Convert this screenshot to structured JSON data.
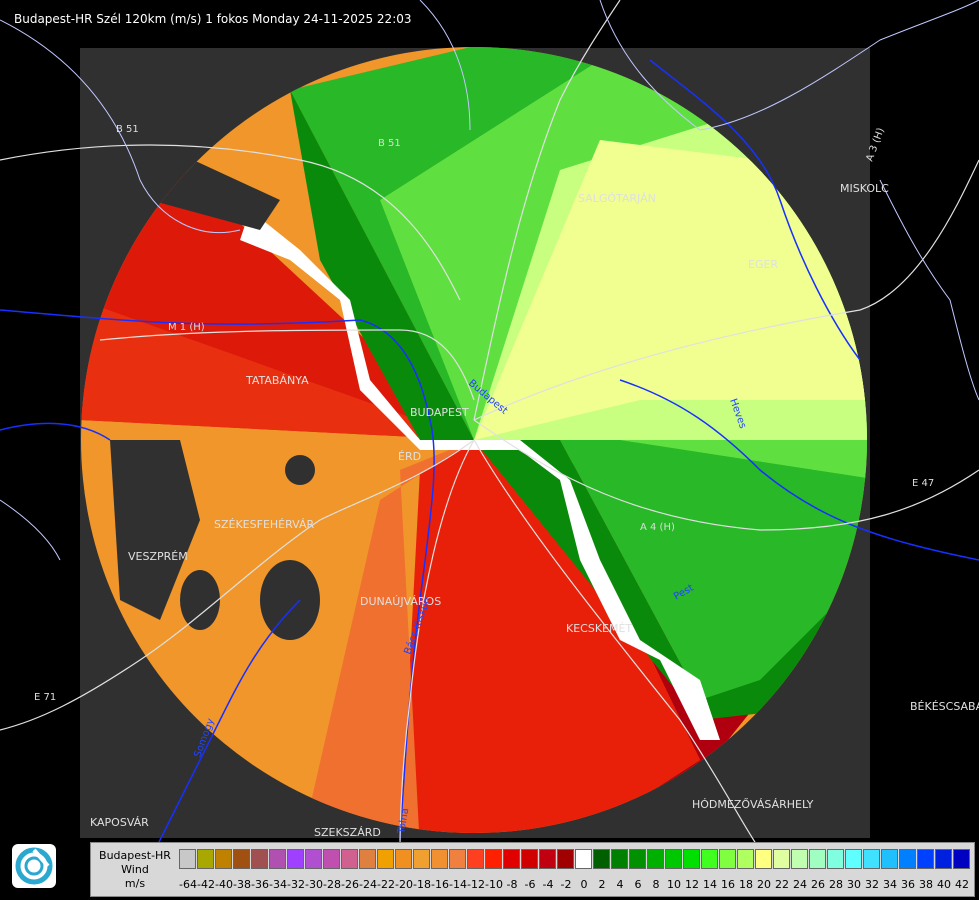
{
  "header": {
    "title": "Budapest-HR Szél 120km (m/s) 1 fokos Monday 24-11-2025 22:03"
  },
  "map": {
    "cities": [
      "SALGÓTARJÁN",
      "EGER",
      "MISKOLC",
      "TATABÁNYA",
      "BUDAPEST",
      "ÉRD",
      "SZÉKESFEHÉRVÁR",
      "VESZPRÉM",
      "DUNAÚJVÁROS",
      "KECSKEMÉT",
      "BÉKÉSCSABA",
      "HÓDMEZŐVÁSÁRHELY",
      "KAPOSVÁR",
      "SZEKSZÁRD"
    ],
    "roads": [
      "B 51",
      "B 51",
      "M 1 (H)",
      "A 4 (H)",
      "A 3 (H)",
      "E 47",
      "E 71"
    ],
    "rivers": [
      "Budapest",
      "Heves",
      "Pest",
      "Bács-Kiskun",
      "Somogy",
      "Tolna"
    ]
  },
  "legend": {
    "label_line1": "Budapest-HR",
    "label_line2": "Wind",
    "label_line3": "m/s",
    "ticks": [
      "-64",
      "-42",
      "-40",
      "-38",
      "-36",
      "-34",
      "-32",
      "-30",
      "-28",
      "-26",
      "-24",
      "-22",
      "-20",
      "-18",
      "-16",
      "-14",
      "-12",
      "-10",
      "-8",
      "-6",
      "-4",
      "-2",
      "0",
      "2",
      "4",
      "6",
      "8",
      "10",
      "12",
      "14",
      "16",
      "18",
      "20",
      "22",
      "24",
      "26",
      "28",
      "30",
      "32",
      "34",
      "36",
      "38",
      "40",
      "42"
    ],
    "colors": [
      "#c8c8c8",
      "#a8a800",
      "#c08000",
      "#a05010",
      "#a05050",
      "#b050b0",
      "#a040ff",
      "#b050d0",
      "#c050b0",
      "#d06090",
      "#e08040",
      "#f0a000",
      "#f09020",
      "#f0a030",
      "#f09030",
      "#f08040",
      "#ff4020",
      "#ff2000",
      "#e00000",
      "#d00000",
      "#c00010",
      "#a00000",
      "#ffffff",
      "#006000",
      "#008000",
      "#009000",
      "#00b000",
      "#00c800",
      "#00e000",
      "#40ff20",
      "#80ff40",
      "#b0ff60",
      "#ffff80",
      "#e0ffa0",
      "#c0ffb0",
      "#a0ffc0",
      "#80ffe0",
      "#60ffff",
      "#40e0ff",
      "#20c0ff",
      "#0080ff",
      "#0040ff",
      "#0020e0",
      "#0000c0"
    ]
  }
}
